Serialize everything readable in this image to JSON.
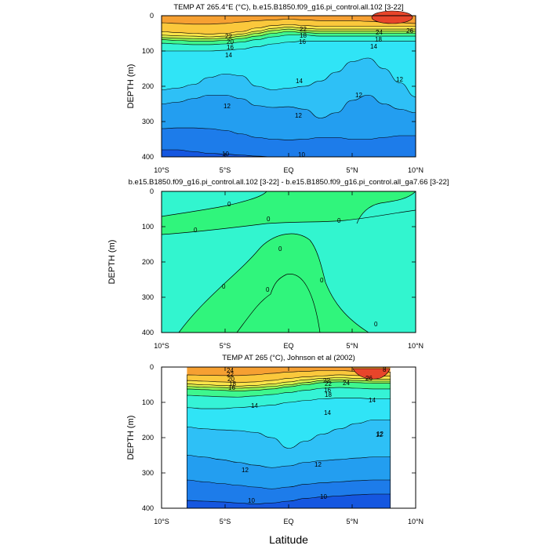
{
  "figure": {
    "xlabel": "Latitude"
  },
  "chart_data": [
    {
      "type": "heatmap",
      "title": "TEMP AT 265.4°E (°C), b.e15.B1850.f09_g16.pi_control.all.102 [3-22]",
      "ylabel": "DEPTH (m)",
      "xlim": [
        -10,
        10
      ],
      "ylim": [
        400,
        0
      ],
      "x_ticks": [
        "10°S",
        "5°S",
        "EQ",
        "5°N",
        "10°N"
      ],
      "y_ticks": [
        "0",
        "100",
        "200",
        "300",
        "400"
      ],
      "contour_labels": [
        "26",
        "24",
        "22",
        "22",
        "20",
        "18",
        "18",
        "16",
        "16",
        "14",
        "14",
        "14",
        "12",
        "12",
        "12",
        "12",
        "10",
        "10"
      ],
      "bands": [
        {
          "min_temp": 24,
          "color": "#f6a032",
          "depth": [
            20,
            22,
            24,
            24,
            22,
            18,
            14,
            12,
            10,
            12,
            14,
            14,
            14,
            16,
            18,
            20,
            22
          ]
        },
        {
          "min_temp": 22,
          "color": "#fbc83c",
          "depth": [
            45,
            48,
            50,
            52,
            50,
            45,
            35,
            28,
            25,
            28,
            30,
            30,
            30,
            30,
            30,
            30,
            30
          ]
        },
        {
          "min_temp": 20,
          "color": "#fde54a",
          "depth": [
            55,
            57,
            58,
            60,
            58,
            52,
            44,
            36,
            32,
            36,
            38,
            38,
            38,
            38,
            38,
            38,
            38
          ]
        },
        {
          "min_temp": 18,
          "color": "#d8f04c",
          "depth": [
            62,
            64,
            65,
            66,
            64,
            58,
            50,
            42,
            38,
            42,
            44,
            44,
            44,
            44,
            44,
            44,
            44
          ]
        },
        {
          "min_temp": 16,
          "color": "#8ef558",
          "depth": [
            68,
            70,
            72,
            72,
            70,
            65,
            58,
            50,
            45,
            48,
            50,
            50,
            50,
            50,
            50,
            50,
            50
          ]
        },
        {
          "min_temp": 14,
          "color": "#3ef78e",
          "depth": [
            78,
            80,
            82,
            82,
            80,
            75,
            68,
            60,
            55,
            55,
            58,
            58,
            58,
            58,
            58,
            58,
            58
          ]
        },
        {
          "min_temp": 13,
          "color": "#35f3d6",
          "depth": [
            100,
            100,
            100,
            100,
            98,
            95,
            88,
            80,
            75,
            72,
            72,
            72,
            72,
            72,
            72,
            72,
            72
          ]
        },
        {
          "min_temp": 12.5,
          "color": "#30e4f6",
          "depth": [
            210,
            205,
            195,
            175,
            165,
            170,
            200,
            210,
            205,
            200,
            185,
            160,
            130,
            120,
            150,
            190,
            230
          ]
        },
        {
          "min_temp": 12,
          "color": "#2ec0f6",
          "depth": [
            250,
            245,
            235,
            225,
            225,
            235,
            255,
            260,
            258,
            265,
            290,
            275,
            240,
            225,
            250,
            265,
            275
          ]
        },
        {
          "min_temp": 11,
          "color": "#239ef0",
          "depth": [
            320,
            318,
            318,
            320,
            325,
            335,
            345,
            350,
            352,
            350,
            345,
            345,
            350,
            350,
            345,
            340,
            340
          ]
        },
        {
          "min_temp": 10,
          "color": "#1d7cea",
          "depth": [
            380,
            380,
            385,
            390,
            392,
            395,
            398,
            400,
            400,
            400,
            400,
            400,
            400,
            400,
            400,
            400,
            400
          ]
        }
      ],
      "bottom_color": "#1557e0",
      "hot_spot": {
        "color": "#e8452a",
        "temp": 27
      }
    },
    {
      "type": "heatmap",
      "title": "b.e15.B1850.f09_g16.pi_control.all.102 [3-22] - b.e15.B1850.f09_g16.pi_control.all_ga7.66 [3-22]",
      "ylabel": "DEPTH (m)",
      "xlim": [
        -10,
        10
      ],
      "ylim": [
        400,
        0
      ],
      "x_ticks": [
        "10°S",
        "5°S",
        "EQ",
        "5°N",
        "10°N"
      ],
      "y_ticks": [
        "0",
        "100",
        "200",
        "300",
        "400"
      ],
      "contour_labels": [
        "0",
        "0",
        "0",
        "0",
        "0",
        "0",
        "0",
        "0",
        "0"
      ],
      "colors": {
        "positive": "#30f57c",
        "negative": "#32f5cf"
      }
    },
    {
      "type": "heatmap",
      "title": "TEMP AT 265 (°C), Johnson et al (2002)",
      "ylabel": "DEPTH (m)",
      "xlim": [
        -10,
        10
      ],
      "ylim": [
        400,
        0
      ],
      "data_xlim": [
        -8,
        8
      ],
      "x_ticks": [
        "10°S",
        "5°S",
        "EQ",
        "5°N",
        "10°N"
      ],
      "y_ticks": [
        "0",
        "100",
        "200",
        "300",
        "400"
      ],
      "contour_labels": [
        "24",
        "22",
        "22",
        "20",
        "18",
        "18",
        "16",
        "16",
        "14",
        "14",
        "14",
        "12",
        "12",
        "12",
        "12",
        "10",
        "10",
        "26",
        "24",
        "22",
        "8"
      ],
      "bands": [
        {
          "min_temp": 24,
          "color": "#f6a032",
          "depth": [
            22,
            23,
            24,
            24,
            22,
            18,
            14,
            12,
            10,
            10,
            12,
            14,
            14
          ]
        },
        {
          "min_temp": 22,
          "color": "#fbc83c",
          "depth": [
            38,
            40,
            42,
            44,
            42,
            38,
            32,
            28,
            25,
            22,
            24,
            26,
            26
          ]
        },
        {
          "min_temp": 20,
          "color": "#fde54a",
          "depth": [
            48,
            50,
            52,
            54,
            52,
            48,
            42,
            36,
            32,
            30,
            32,
            34,
            34
          ]
        },
        {
          "min_temp": 18,
          "color": "#d8f04c",
          "depth": [
            55,
            57,
            58,
            60,
            58,
            55,
            50,
            44,
            38,
            36,
            38,
            40,
            40
          ]
        },
        {
          "min_temp": 16,
          "color": "#8ef558",
          "depth": [
            62,
            64,
            66,
            68,
            66,
            62,
            56,
            50,
            44,
            42,
            44,
            46,
            46
          ]
        },
        {
          "min_temp": 14,
          "color": "#3ef78e",
          "depth": [
            80,
            82,
            84,
            85,
            82,
            78,
            72,
            66,
            60,
            58,
            60,
            62,
            62
          ]
        },
        {
          "min_temp": 13,
          "color": "#35f3d6",
          "depth": [
            115,
            118,
            118,
            115,
            112,
            108,
            100,
            95,
            90,
            88,
            88,
            90,
            90
          ]
        },
        {
          "min_temp": 12.5,
          "color": "#30e4f6",
          "depth": [
            170,
            175,
            178,
            180,
            185,
            200,
            230,
            210,
            190,
            175,
            160,
            150,
            150
          ]
        },
        {
          "min_temp": 12,
          "color": "#2ec0f6",
          "depth": [
            250,
            255,
            262,
            270,
            278,
            285,
            280,
            270,
            265,
            262,
            258,
            255,
            255
          ]
        },
        {
          "min_temp": 11,
          "color": "#239ef0",
          "depth": [
            320,
            325,
            330,
            335,
            340,
            345,
            340,
            332,
            328,
            325,
            322,
            320,
            320
          ]
        },
        {
          "min_temp": 10,
          "color": "#1d7cea",
          "depth": [
            378,
            380,
            382,
            385,
            388,
            385,
            380,
            372,
            368,
            365,
            362,
            360,
            360
          ]
        }
      ],
      "bottom_color": "#1557e0",
      "hot_spot": {
        "color": "#e8452a",
        "temp": 26
      }
    }
  ]
}
